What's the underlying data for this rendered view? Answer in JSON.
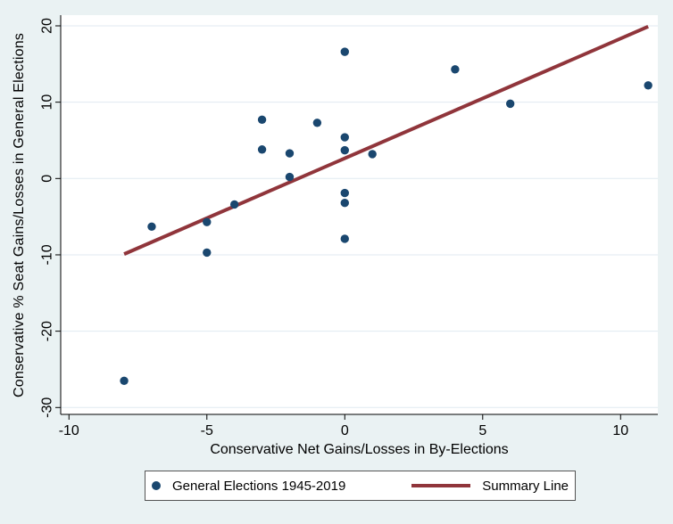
{
  "figure": {
    "background_color": "#eaf2f3",
    "plot_background_color": "#ffffff",
    "gridline_color": "#e0eaf1",
    "axis_color": "#000000",
    "text_color": "#000000"
  },
  "chart_data": {
    "type": "scatter",
    "title": "",
    "xlabel": "Conservative Net Gains/Losses in By-Elections",
    "ylabel": "Conservative % Seat Gains/Losses in General Elections",
    "xlim": [
      -10.3,
      11.35
    ],
    "ylim": [
      -30.9,
      21.4
    ],
    "x_ticks": [
      -10,
      -5,
      0,
      5,
      10
    ],
    "y_ticks": [
      20,
      10,
      0,
      -10,
      -20,
      -30
    ],
    "grid": "horizontal",
    "legend_position": "bottom-center",
    "series": [
      {
        "name": "General Elections 1945-2019",
        "type": "scatter",
        "color": "#1a476f",
        "marker": "circle",
        "points": [
          [
            -8,
            -26.5
          ],
          [
            -7,
            -6.3
          ],
          [
            -5,
            -5.7
          ],
          [
            -5,
            -9.7
          ],
          [
            -4,
            -3.4
          ],
          [
            -3,
            7.7
          ],
          [
            -3,
            3.8
          ],
          [
            -2,
            3.3
          ],
          [
            -2,
            0.2
          ],
          [
            -1,
            7.3
          ],
          [
            0,
            16.6
          ],
          [
            0,
            5.4
          ],
          [
            0,
            3.7
          ],
          [
            0,
            -1.9
          ],
          [
            0,
            -3.2
          ],
          [
            0,
            -7.9
          ],
          [
            1,
            3.2
          ],
          [
            4,
            14.3
          ],
          [
            6,
            9.8
          ],
          [
            11,
            12.2
          ]
        ]
      },
      {
        "name": "Summary Line",
        "type": "line",
        "color": "#90353b",
        "points": [
          [
            -8,
            -9.9
          ],
          [
            11,
            19.9
          ]
        ]
      }
    ]
  },
  "legend": {
    "background": "#ffffff",
    "border_color": "#545454",
    "items": [
      {
        "label": "General Elections 1945-2019",
        "marker": "dot",
        "color": "#1a476f"
      },
      {
        "label": "Summary Line",
        "marker": "line",
        "color": "#90353b"
      }
    ]
  }
}
